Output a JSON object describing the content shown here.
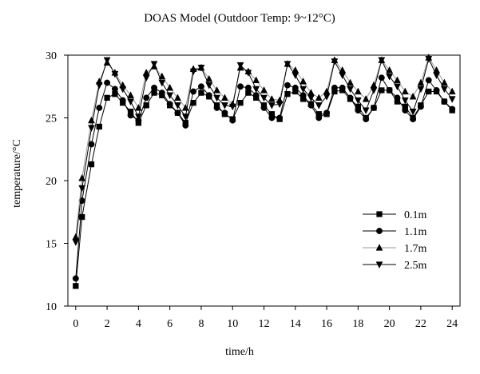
{
  "chart_data": {
    "type": "line",
    "title": "DOAS Model (Outdoor Temp: 9~12°C)",
    "xlabel": "time/h",
    "ylabel": "temperature/°C",
    "xlim": [
      -0.5,
      24.5
    ],
    "ylim": [
      10,
      30
    ],
    "xticks": [
      0,
      2,
      4,
      6,
      8,
      10,
      12,
      14,
      16,
      18,
      20,
      22,
      24
    ],
    "yticks": [
      10,
      15,
      20,
      25,
      30
    ],
    "grid": false,
    "legend_position": "right",
    "series": [
      {
        "name": "0.1m",
        "marker": "square",
        "points": [
          [
            0,
            11.6
          ],
          [
            0.4,
            17.1
          ],
          [
            1,
            21.3
          ],
          [
            1.5,
            24.3
          ],
          [
            2,
            26.6
          ],
          [
            2.5,
            26.9
          ],
          [
            3,
            26.2
          ],
          [
            3.5,
            25.5
          ],
          [
            4,
            24.6
          ],
          [
            4.5,
            26.0
          ],
          [
            5,
            27.0
          ],
          [
            5.5,
            26.8
          ],
          [
            6,
            26.0
          ],
          [
            6.5,
            25.4
          ],
          [
            7,
            24.6
          ],
          [
            7.5,
            26.2
          ],
          [
            8,
            27.0
          ],
          [
            8.5,
            26.7
          ],
          [
            9,
            26.0
          ],
          [
            9.5,
            25.3
          ],
          [
            10,
            24.9
          ],
          [
            10.5,
            26.2
          ],
          [
            11,
            27.0
          ],
          [
            11.5,
            26.6
          ],
          [
            12,
            26.0
          ],
          [
            12.5,
            25.3
          ],
          [
            13,
            24.9
          ],
          [
            13.5,
            26.9
          ],
          [
            14,
            27.1
          ],
          [
            14.5,
            26.5
          ],
          [
            15,
            26.1
          ],
          [
            15.5,
            25.3
          ],
          [
            16,
            25.3
          ],
          [
            16.5,
            27.1
          ],
          [
            17,
            27.2
          ],
          [
            17.5,
            26.5
          ],
          [
            18,
            25.9
          ],
          [
            18.5,
            25.0
          ],
          [
            19,
            25.8
          ],
          [
            19.5,
            27.2
          ],
          [
            20,
            27.2
          ],
          [
            20.5,
            26.3
          ],
          [
            21,
            25.9
          ],
          [
            21.5,
            25.0
          ],
          [
            22,
            26.0
          ],
          [
            22.5,
            27.1
          ],
          [
            23,
            27.1
          ],
          [
            23.5,
            26.3
          ],
          [
            24,
            25.6
          ]
        ]
      },
      {
        "name": "1.1m",
        "marker": "circle",
        "points": [
          [
            0,
            12.2
          ],
          [
            0.4,
            18.4
          ],
          [
            1,
            22.9
          ],
          [
            1.5,
            25.8
          ],
          [
            2,
            27.8
          ],
          [
            2.5,
            27.3
          ],
          [
            3,
            26.4
          ],
          [
            3.5,
            25.2
          ],
          [
            4,
            24.8
          ],
          [
            4.5,
            26.6
          ],
          [
            5,
            27.4
          ],
          [
            5.5,
            27.0
          ],
          [
            6,
            26.1
          ],
          [
            6.5,
            25.4
          ],
          [
            7,
            24.4
          ],
          [
            7.5,
            27.1
          ],
          [
            8,
            27.5
          ],
          [
            8.5,
            26.8
          ],
          [
            9,
            25.8
          ],
          [
            9.5,
            25.4
          ],
          [
            10,
            24.8
          ],
          [
            10.5,
            27.5
          ],
          [
            11,
            27.4
          ],
          [
            11.5,
            26.8
          ],
          [
            12,
            25.8
          ],
          [
            12.5,
            25.0
          ],
          [
            13,
            25.0
          ],
          [
            13.5,
            27.6
          ],
          [
            14,
            27.4
          ],
          [
            14.5,
            26.8
          ],
          [
            15,
            26.0
          ],
          [
            15.5,
            25.0
          ],
          [
            16,
            25.4
          ],
          [
            16.5,
            27.4
          ],
          [
            17,
            27.4
          ],
          [
            17.5,
            26.6
          ],
          [
            18,
            25.6
          ],
          [
            18.5,
            24.9
          ],
          [
            19,
            25.8
          ],
          [
            19.5,
            28.2
          ],
          [
            20,
            27.2
          ],
          [
            20.5,
            26.6
          ],
          [
            21,
            25.6
          ],
          [
            21.5,
            24.9
          ],
          [
            22,
            25.9
          ],
          [
            22.5,
            28.0
          ],
          [
            23,
            27.2
          ],
          [
            23.5,
            26.3
          ],
          [
            24,
            25.7
          ]
        ]
      },
      {
        "name": "1.7m",
        "marker": "triangle-up",
        "points": [
          [
            0,
            15.5
          ],
          [
            0.4,
            20.2
          ],
          [
            1,
            24.8
          ],
          [
            1.5,
            27.9
          ],
          [
            2,
            29.4
          ],
          [
            2.5,
            28.6
          ],
          [
            3,
            27.6
          ],
          [
            3.5,
            26.8
          ],
          [
            4,
            25.8
          ],
          [
            4.5,
            28.6
          ],
          [
            5,
            29.1
          ],
          [
            5.5,
            28.3
          ],
          [
            6,
            27.4
          ],
          [
            6.5,
            26.6
          ],
          [
            7,
            25.8
          ],
          [
            7.5,
            28.9
          ],
          [
            8,
            29.0
          ],
          [
            8.5,
            28.1
          ],
          [
            9,
            27.2
          ],
          [
            9.5,
            26.6
          ],
          [
            10,
            26.1
          ],
          [
            10.5,
            29.0
          ],
          [
            11,
            28.7
          ],
          [
            11.5,
            28.0
          ],
          [
            12,
            27.2
          ],
          [
            12.5,
            26.5
          ],
          [
            13,
            26.4
          ],
          [
            13.5,
            29.3
          ],
          [
            14,
            28.8
          ],
          [
            14.5,
            27.9
          ],
          [
            15,
            27.0
          ],
          [
            15.5,
            26.6
          ],
          [
            16,
            27.1
          ],
          [
            16.5,
            29.6
          ],
          [
            17,
            28.8
          ],
          [
            17.5,
            27.8
          ],
          [
            18,
            27.1
          ],
          [
            18.5,
            26.5
          ],
          [
            19,
            27.6
          ],
          [
            19.5,
            29.6
          ],
          [
            20,
            28.8
          ],
          [
            20.5,
            28.0
          ],
          [
            21,
            27.1
          ],
          [
            21.5,
            26.7
          ],
          [
            22,
            27.8
          ],
          [
            22.5,
            29.8
          ],
          [
            23,
            28.8
          ],
          [
            23.5,
            27.8
          ],
          [
            24,
            27.1
          ]
        ]
      },
      {
        "name": "2.5m",
        "marker": "triangle-down",
        "points": [
          [
            0,
            15.1
          ],
          [
            0.4,
            19.4
          ],
          [
            1,
            24.2
          ],
          [
            1.5,
            27.6
          ],
          [
            2,
            29.6
          ],
          [
            2.5,
            28.5
          ],
          [
            3,
            27.3
          ],
          [
            3.5,
            26.3
          ],
          [
            4,
            25.1
          ],
          [
            4.5,
            28.2
          ],
          [
            5,
            29.3
          ],
          [
            5.5,
            27.8
          ],
          [
            6,
            26.8
          ],
          [
            6.5,
            26.0
          ],
          [
            7,
            25.1
          ],
          [
            7.5,
            28.7
          ],
          [
            8,
            29.0
          ],
          [
            8.5,
            27.6
          ],
          [
            9,
            26.6
          ],
          [
            9.5,
            26.0
          ],
          [
            10,
            25.9
          ],
          [
            10.5,
            29.2
          ],
          [
            11,
            28.6
          ],
          [
            11.5,
            27.3
          ],
          [
            12,
            26.6
          ],
          [
            12.5,
            26.0
          ],
          [
            13,
            26.1
          ],
          [
            13.5,
            29.3
          ],
          [
            14,
            28.4
          ],
          [
            14.5,
            27.3
          ],
          [
            15,
            26.6
          ],
          [
            15.5,
            26.0
          ],
          [
            16,
            26.7
          ],
          [
            16.5,
            29.5
          ],
          [
            17,
            28.4
          ],
          [
            17.5,
            27.3
          ],
          [
            18,
            26.4
          ],
          [
            18.5,
            25.6
          ],
          [
            19,
            27.2
          ],
          [
            19.5,
            29.6
          ],
          [
            20,
            28.3
          ],
          [
            20.5,
            27.5
          ],
          [
            21,
            26.4
          ],
          [
            21.5,
            25.5
          ],
          [
            22,
            27.3
          ],
          [
            22.5,
            29.7
          ],
          [
            23,
            28.4
          ],
          [
            23.5,
            27.3
          ],
          [
            24,
            26.5
          ]
        ]
      }
    ]
  }
}
